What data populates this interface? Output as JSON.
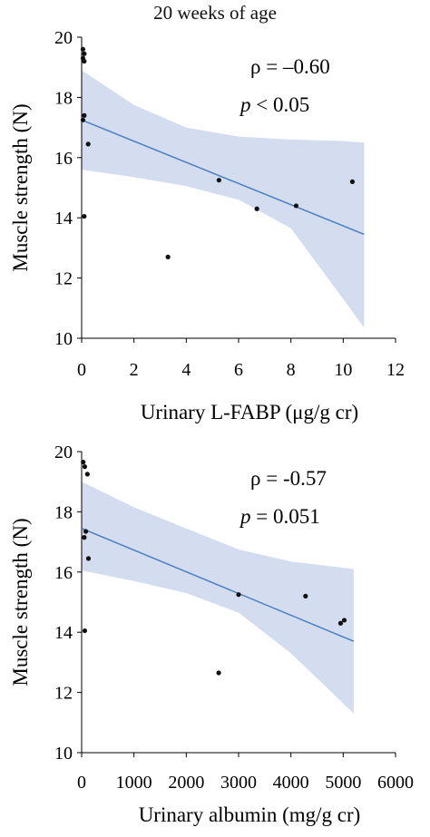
{
  "header": {
    "title": "20 weeks of age"
  },
  "chart_data": [
    {
      "type": "scatter",
      "title": "",
      "xlabel": "Urinary L-FABP (μg/g cr)",
      "ylabel": "Muscle strength  (N)",
      "xlim": [
        0,
        12
      ],
      "ylim": [
        10,
        20
      ],
      "xticks": [
        "0",
        "2",
        "4",
        "6",
        "8",
        "10",
        "12"
      ],
      "yticks": [
        "10",
        "12",
        "14",
        "16",
        "18",
        "20"
      ],
      "annotation": {
        "rho_symbol": "ρ",
        "rho_value": " = –0.60",
        "p_symbol": "p",
        "p_value": " < 0.05"
      },
      "points": [
        {
          "x": 0.05,
          "y": 19.6
        },
        {
          "x": 0.1,
          "y": 19.45
        },
        {
          "x": 0.05,
          "y": 19.3
        },
        {
          "x": 0.1,
          "y": 19.2
        },
        {
          "x": 0.1,
          "y": 17.4
        },
        {
          "x": 0.05,
          "y": 17.25
        },
        {
          "x": 0.25,
          "y": 16.45
        },
        {
          "x": 0.1,
          "y": 14.05
        },
        {
          "x": 3.3,
          "y": 12.7
        },
        {
          "x": 5.25,
          "y": 15.25
        },
        {
          "x": 6.7,
          "y": 14.3
        },
        {
          "x": 8.2,
          "y": 14.4
        },
        {
          "x": 10.35,
          "y": 15.2
        }
      ],
      "fit": {
        "x": [
          0,
          10.8
        ],
        "y": [
          17.25,
          13.45
        ]
      },
      "band": {
        "x": [
          0,
          2,
          4,
          6,
          8,
          10,
          10.8
        ],
        "upper": [
          18.9,
          17.75,
          17.0,
          16.7,
          16.6,
          16.55,
          16.5
        ],
        "lower": [
          15.6,
          15.35,
          15.05,
          14.6,
          13.65,
          11.3,
          10.35
        ]
      },
      "colors": {
        "line": "#4a7fc1",
        "band": "#d3ddef",
        "point": "#111111"
      }
    },
    {
      "type": "scatter",
      "title": "",
      "xlabel": "Urinary albumin (mg/g cr)",
      "ylabel": "Muscle strength  (N)",
      "xlim": [
        0,
        6000
      ],
      "ylim": [
        10,
        20
      ],
      "xticks": [
        "0",
        "1000",
        "2000",
        "3000",
        "4000",
        "5000",
        "6000"
      ],
      "yticks": [
        "10",
        "12",
        "14",
        "16",
        "18",
        "20"
      ],
      "annotation": {
        "rho_symbol": "ρ",
        "rho_value": " =  -0.57",
        "p_symbol": "p",
        "p_value": " = 0.051"
      },
      "points": [
        {
          "x": 30,
          "y": 19.65
        },
        {
          "x": 60,
          "y": 19.5
        },
        {
          "x": 110,
          "y": 19.25
        },
        {
          "x": 80,
          "y": 17.35
        },
        {
          "x": 50,
          "y": 17.15
        },
        {
          "x": 130,
          "y": 16.45
        },
        {
          "x": 60,
          "y": 14.05
        },
        {
          "x": 2620,
          "y": 12.65
        },
        {
          "x": 3000,
          "y": 15.25
        },
        {
          "x": 4280,
          "y": 15.2
        },
        {
          "x": 4950,
          "y": 14.3
        },
        {
          "x": 5020,
          "y": 14.4
        }
      ],
      "fit": {
        "x": [
          0,
          5200
        ],
        "y": [
          17.45,
          13.7
        ]
      },
      "band": {
        "x": [
          0,
          1000,
          2000,
          3000,
          4000,
          5200
        ],
        "upper": [
          19.0,
          18.15,
          17.45,
          16.75,
          16.35,
          16.1
        ],
        "lower": [
          16.05,
          15.7,
          15.3,
          14.65,
          13.3,
          11.3
        ]
      },
      "colors": {
        "line": "#4a7fc1",
        "band": "#d3ddef",
        "point": "#111111"
      }
    }
  ]
}
